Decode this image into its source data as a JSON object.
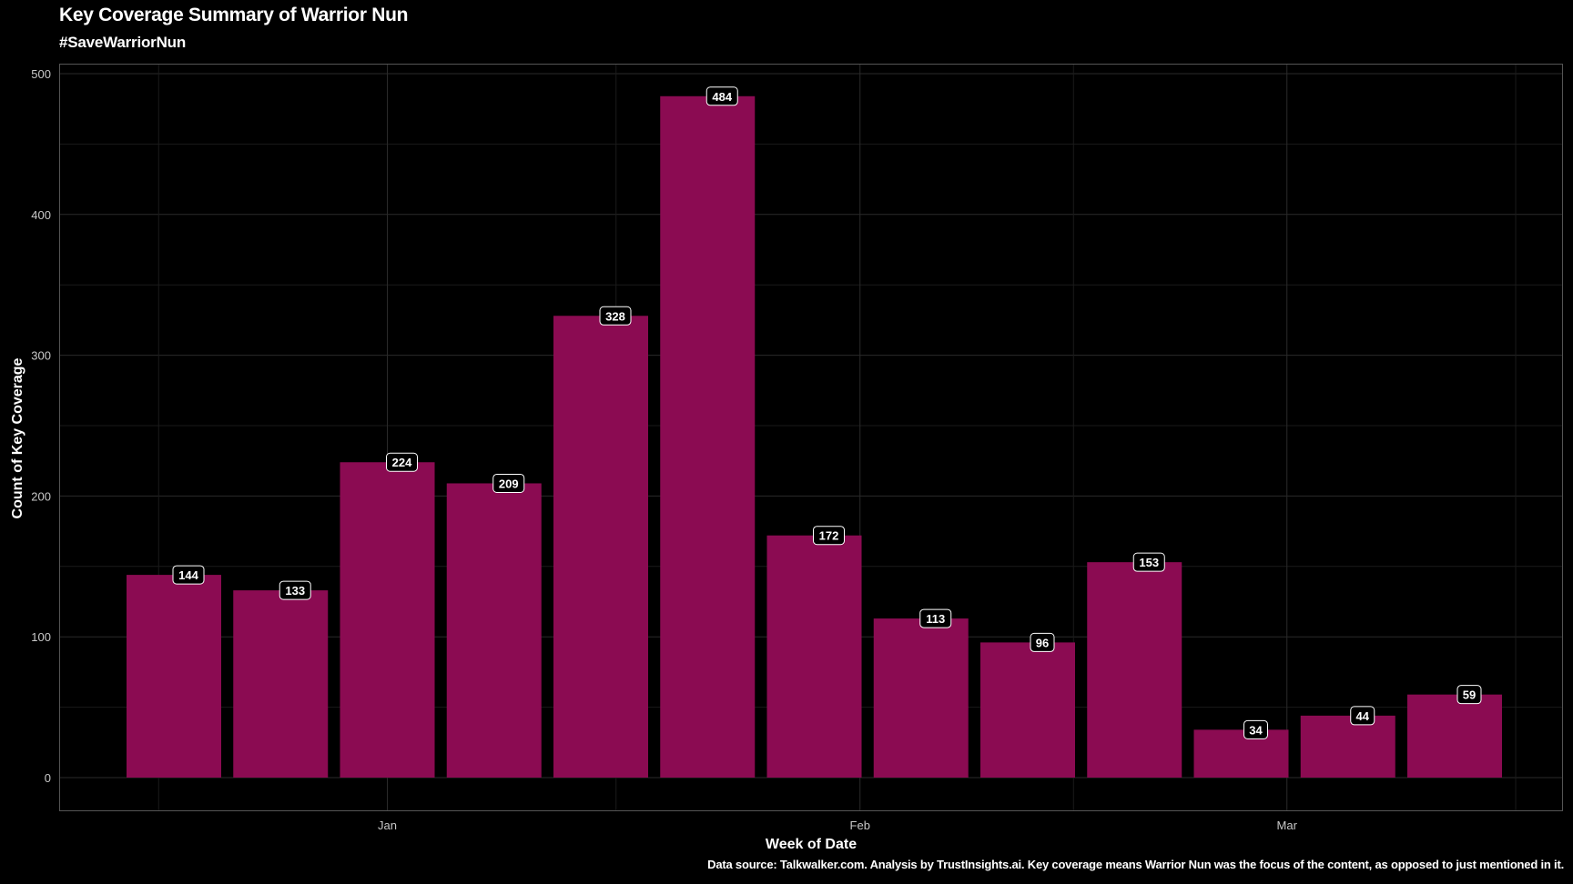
{
  "header": {
    "title": "Key Coverage Summary of Warrior Nun",
    "subtitle": "#SaveWarriorNun"
  },
  "footer": {
    "caption": "Data source: Talkwalker.com. Analysis by TrustInsights.ai. Key coverage means Warrior Nun was the focus of the content, as opposed to just mentioned in it."
  },
  "colors": {
    "background": "#000000",
    "bar": "#8b0b52",
    "grid": "#2a2a2a",
    "panel_border": "#555555",
    "label_bg": "#000000",
    "label_text": "#ffffff"
  },
  "chart_data": {
    "type": "bar",
    "title": "Key Coverage Summary of Warrior Nun",
    "subtitle": "#SaveWarriorNun",
    "xlabel": "Week of Date",
    "ylabel": "Count of Key Coverage",
    "x_tick_labels": [
      "Jan",
      "Feb",
      "Mar"
    ],
    "y_ticks": [
      0,
      100,
      200,
      300,
      400,
      500
    ],
    "ylim": [
      0,
      500
    ],
    "grid": true,
    "bars": [
      {
        "week": "2022-12-18",
        "value": 144
      },
      {
        "week": "2022-12-25",
        "value": 133
      },
      {
        "week": "2023-01-01",
        "value": 224
      },
      {
        "week": "2023-01-08",
        "value": 209
      },
      {
        "week": "2023-01-15",
        "value": 328
      },
      {
        "week": "2023-01-22",
        "value": 484
      },
      {
        "week": "2023-01-29",
        "value": 172
      },
      {
        "week": "2023-02-05",
        "value": 113
      },
      {
        "week": "2023-02-12",
        "value": 96
      },
      {
        "week": "2023-02-19",
        "value": 153
      },
      {
        "week": "2023-02-26",
        "value": 34
      },
      {
        "week": "2023-03-05",
        "value": 44
      },
      {
        "week": "2023-03-12",
        "value": 59
      }
    ],
    "x_ticks": [
      {
        "label": "Jan",
        "date": "2023-01-01"
      },
      {
        "label": "Feb",
        "date": "2023-02-01"
      },
      {
        "label": "Mar",
        "date": "2023-03-01"
      }
    ]
  }
}
